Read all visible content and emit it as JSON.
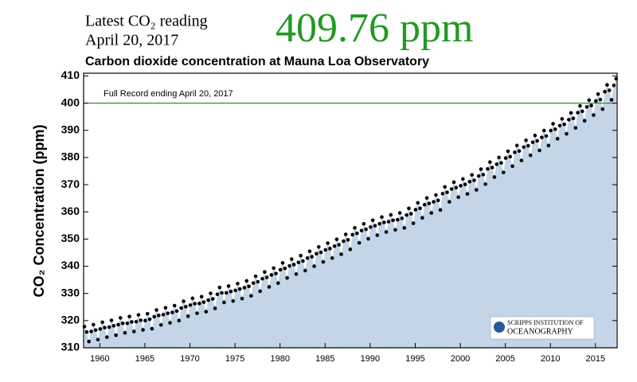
{
  "chart_data": {
    "type": "scatter",
    "headline": "Latest CO₂ reading",
    "date": "April 20, 2017",
    "latest_reading": "409.76 ppm",
    "title": "Carbon dioxide concentration at Mauna Loa Observatory",
    "annotation": "Full Record ending April 20, 2017",
    "logo": [
      "SCRIPPS INSTITUTION OF",
      "OCEANOGRAPHY"
    ],
    "y_label": "CO₂ Concentration (ppm)",
    "xlim": [
      1958.2,
      2017.4
    ],
    "ylim": [
      310,
      411
    ],
    "xticks": [
      1960,
      1965,
      1970,
      1975,
      1980,
      1985,
      1990,
      1995,
      2000,
      2005,
      2010,
      2015
    ],
    "yticks": [
      310,
      320,
      330,
      340,
      350,
      360,
      370,
      380,
      390,
      400,
      410
    ],
    "reference_line": 400,
    "reference_color": "#1a8a1a",
    "fill_color": "#c4d5e8",
    "color": "#000000",
    "x": [
      1958.29,
      1958.54,
      1958.79,
      1959.04,
      1959.29,
      1959.54,
      1959.79,
      1960.04,
      1960.29,
      1960.54,
      1960.79,
      1961.04,
      1961.29,
      1961.54,
      1961.79,
      1962.04,
      1962.29,
      1962.54,
      1962.79,
      1963.04,
      1963.29,
      1963.54,
      1963.79,
      1964.04,
      1964.29,
      1964.54,
      1964.79,
      1965.04,
      1965.29,
      1965.54,
      1965.79,
      1966.04,
      1966.29,
      1966.54,
      1966.79,
      1967.04,
      1967.29,
      1967.54,
      1967.79,
      1968.04,
      1968.29,
      1968.54,
      1968.79,
      1969.04,
      1969.29,
      1969.54,
      1969.79,
      1970.04,
      1970.29,
      1970.54,
      1970.79,
      1971.04,
      1971.29,
      1971.54,
      1971.79,
      1972.04,
      1972.29,
      1972.54,
      1972.79,
      1973.04,
      1973.29,
      1973.54,
      1973.79,
      1974.04,
      1974.29,
      1974.54,
      1974.79,
      1975.04,
      1975.29,
      1975.54,
      1975.79,
      1976.04,
      1976.29,
      1976.54,
      1976.79,
      1977.04,
      1977.29,
      1977.54,
      1977.79,
      1978.04,
      1978.29,
      1978.54,
      1978.79,
      1979.04,
      1979.29,
      1979.54,
      1979.79,
      1980.04,
      1980.29,
      1980.54,
      1980.79,
      1981.04,
      1981.29,
      1981.54,
      1981.79,
      1982.04,
      1982.29,
      1982.54,
      1982.79,
      1983.04,
      1983.29,
      1983.54,
      1983.79,
      1984.04,
      1984.29,
      1984.54,
      1984.79,
      1985.04,
      1985.29,
      1985.54,
      1985.79,
      1986.04,
      1986.29,
      1986.54,
      1986.79,
      1987.04,
      1987.29,
      1987.54,
      1987.79,
      1988.04,
      1988.29,
      1988.54,
      1988.79,
      1989.04,
      1989.29,
      1989.54,
      1989.79,
      1990.04,
      1990.29,
      1990.54,
      1990.79,
      1991.04,
      1991.29,
      1991.54,
      1991.79,
      1992.04,
      1992.29,
      1992.54,
      1992.79,
      1993.04,
      1993.29,
      1993.54,
      1993.79,
      1994.04,
      1994.29,
      1994.54,
      1994.79,
      1995.04,
      1995.29,
      1995.54,
      1995.79,
      1996.04,
      1996.29,
      1996.54,
      1996.79,
      1997.04,
      1997.29,
      1997.54,
      1997.79,
      1998.04,
      1998.29,
      1998.54,
      1998.79,
      1999.04,
      1999.29,
      1999.54,
      1999.79,
      2000.04,
      2000.29,
      2000.54,
      2000.79,
      2001.04,
      2001.29,
      2001.54,
      2001.79,
      2002.04,
      2002.29,
      2002.54,
      2002.79,
      2003.04,
      2003.29,
      2003.54,
      2003.79,
      2004.04,
      2004.29,
      2004.54,
      2004.79,
      2005.04,
      2005.29,
      2005.54,
      2005.79,
      2006.04,
      2006.29,
      2006.54,
      2006.79,
      2007.04,
      2007.29,
      2007.54,
      2007.79,
      2008.04,
      2008.29,
      2008.54,
      2008.79,
      2009.04,
      2009.29,
      2009.54,
      2009.79,
      2010.04,
      2010.29,
      2010.54,
      2010.79,
      2011.04,
      2011.29,
      2011.54,
      2011.79,
      2012.04,
      2012.29,
      2012.54,
      2012.79,
      2013.04,
      2013.29,
      2013.54,
      2013.79,
      2014.04,
      2014.29,
      2014.54,
      2014.79,
      2015.04,
      2015.29,
      2015.54,
      2015.79,
      2016.04,
      2016.29,
      2016.54,
      2016.79,
      2017.04,
      2017.29
    ],
    "values": [
      317.8,
      315.8,
      312.3,
      316.0,
      318.5,
      316.5,
      313.0,
      316.9,
      319.4,
      317.4,
      313.9,
      317.6,
      320.1,
      318.1,
      314.6,
      318.5,
      321.0,
      319.0,
      315.5,
      319.0,
      321.5,
      319.5,
      316.0,
      319.6,
      322.1,
      320.1,
      316.6,
      320.0,
      322.5,
      320.5,
      317.0,
      321.4,
      323.9,
      321.9,
      318.4,
      322.2,
      324.7,
      322.7,
      319.2,
      323.0,
      325.5,
      323.5,
      320.0,
      324.6,
      327.1,
      325.1,
      321.6,
      325.7,
      328.2,
      326.2,
      322.7,
      326.3,
      328.8,
      326.8,
      323.3,
      327.5,
      330.0,
      328.0,
      324.5,
      329.7,
      332.2,
      330.2,
      326.7,
      330.2,
      332.7,
      330.7,
      327.2,
      331.1,
      333.6,
      331.6,
      328.1,
      332.1,
      334.6,
      332.6,
      329.1,
      333.8,
      336.3,
      334.3,
      330.8,
      335.4,
      337.9,
      335.9,
      332.4,
      336.8,
      339.3,
      337.3,
      333.8,
      338.7,
      341.2,
      339.2,
      335.7,
      340.1,
      342.6,
      340.6,
      337.1,
      341.4,
      343.9,
      341.9,
      338.4,
      343.0,
      345.5,
      343.5,
      340.0,
      344.6,
      347.1,
      345.1,
      341.6,
      346.0,
      348.5,
      346.5,
      343.0,
      347.4,
      349.9,
      347.9,
      344.4,
      349.2,
      351.7,
      349.7,
      346.2,
      351.6,
      354.1,
      352.1,
      348.6,
      353.1,
      355.6,
      353.6,
      350.1,
      354.4,
      356.9,
      354.9,
      351.4,
      355.6,
      358.1,
      356.1,
      352.6,
      356.4,
      358.9,
      356.9,
      353.4,
      357.1,
      359.6,
      357.6,
      354.1,
      358.8,
      361.3,
      359.3,
      355.8,
      360.8,
      363.3,
      361.3,
      357.8,
      362.6,
      365.1,
      363.1,
      359.6,
      363.7,
      366.2,
      364.2,
      360.7,
      366.7,
      369.2,
      367.2,
      363.7,
      368.4,
      370.9,
      368.9,
      365.4,
      369.6,
      372.1,
      370.1,
      366.6,
      371.1,
      373.6,
      371.6,
      368.1,
      373.2,
      375.7,
      373.7,
      370.2,
      375.8,
      378.3,
      376.3,
      372.8,
      377.5,
      380.0,
      378.0,
      374.5,
      379.8,
      382.3,
      380.3,
      376.8,
      381.9,
      384.4,
      382.4,
      378.9,
      383.8,
      386.3,
      384.3,
      380.8,
      385.6,
      388.1,
      386.1,
      382.6,
      387.4,
      389.9,
      387.9,
      384.4,
      389.9,
      392.4,
      390.4,
      386.9,
      391.7,
      394.2,
      392.2,
      388.7,
      393.9,
      396.4,
      394.4,
      390.9,
      396.5,
      399.0,
      397.0,
      393.5,
      398.6,
      401.1,
      399.1,
      395.6,
      400.8,
      403.3,
      401.3,
      397.8,
      404.2,
      406.7,
      404.7,
      401.2,
      406.5,
      409.0
    ]
  }
}
